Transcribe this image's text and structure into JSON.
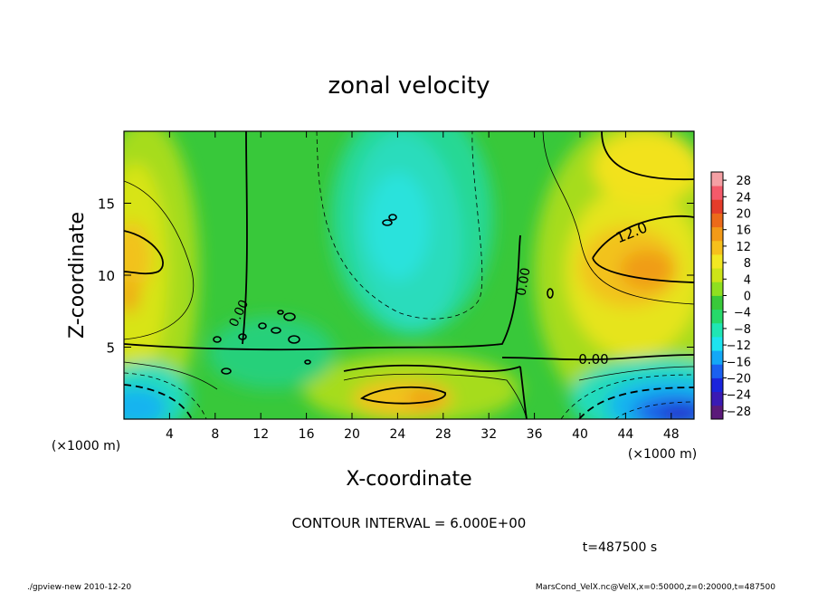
{
  "chart_data": {
    "type": "heatmap",
    "title": "zonal velocity",
    "xlabel": "X-coordinate",
    "ylabel": "Z-coordinate",
    "x_unit": "(×1000 m)",
    "z_unit": "(×1000 m)",
    "xlim": [
      0,
      50
    ],
    "zlim": [
      0,
      20
    ],
    "x_ticks": [
      "4",
      "8",
      "12",
      "16",
      "20",
      "24",
      "28",
      "32",
      "36",
      "40",
      "44",
      "48"
    ],
    "z_ticks": [
      "5",
      "10",
      "15"
    ],
    "colorbar": {
      "labels": [
        "28",
        "24",
        "20",
        "16",
        "12",
        "8",
        "4",
        "0",
        "−4",
        "−8",
        "−12",
        "−16",
        "−20",
        "−24",
        "−28"
      ],
      "range": [
        -30,
        30
      ],
      "colors": [
        "#5b1a7a",
        "#3a1ab4",
        "#1a24dc",
        "#1a60f0",
        "#14a8f6",
        "#1ee4ef",
        "#20e6b4",
        "#26d96a",
        "#39c93a",
        "#8fe020",
        "#cde418",
        "#f2e822",
        "#f6c01c",
        "#f29a18",
        "#ec6a1a",
        "#e43c2a",
        "#f45a6a",
        "#f5a0a4"
      ]
    },
    "contour_interval": "6.000E+00",
    "contour_labels": [
      "12.0",
      "0.00",
      "0.00",
      "0.00"
    ],
    "features": [
      {
        "label": "positive max",
        "x": 45,
        "z": 11,
        "value": 16
      },
      {
        "label": "positive max",
        "x": 1,
        "z": 11,
        "value": 14
      },
      {
        "label": "positive max",
        "x": 25,
        "z": 1.5,
        "value": 15
      },
      {
        "label": "positive max",
        "x": 46,
        "z": 17.5,
        "value": 12
      },
      {
        "label": "negative min",
        "x": 23,
        "z": 13,
        "value": -12
      },
      {
        "label": "negative min",
        "x": 48,
        "z": 0.5,
        "value": -26
      },
      {
        "label": "negative min",
        "x": 1.5,
        "z": 1.5,
        "value": -13
      }
    ]
  },
  "annotations": {
    "contour_text": "CONTOUR INTERVAL = 6.000E+00",
    "time_text": "t=487500 s",
    "footer_left": "./gpview-new  2010-12-20",
    "footer_right": "MarsCond_VelX.nc@VelX,x=0:50000,z=0:20000,t=487500"
  }
}
